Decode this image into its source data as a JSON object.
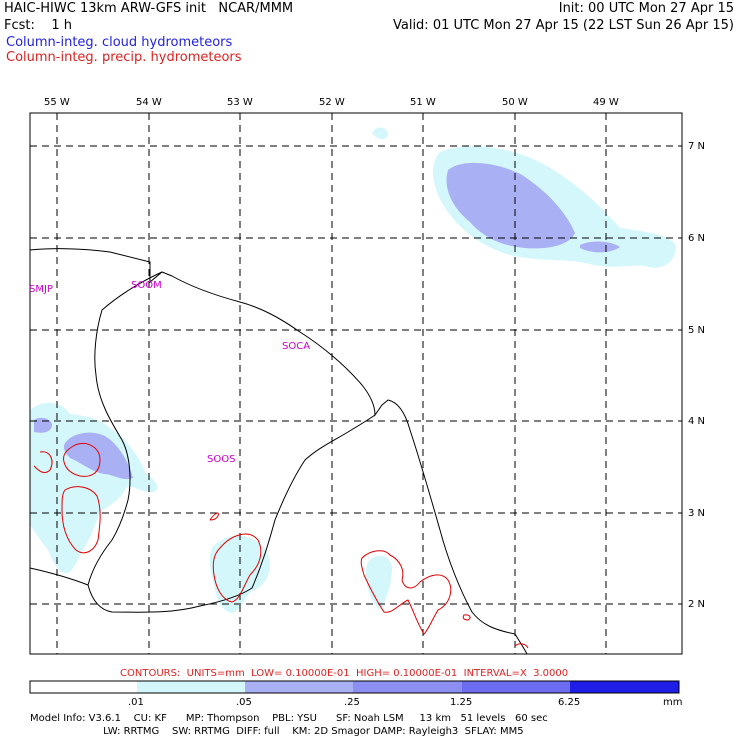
{
  "header": {
    "line1_left": "HAIC-HIWC 13km ARW-GFS init   NCAR/MMM",
    "line1_right": "Init: 00 UTC Mon 27 Apr 15",
    "line2_left": "Fcst:    1 h",
    "line2_right": "Valid: 01 UTC Mon 27 Apr 15 (22 LST Sun 26 Apr 15)",
    "legend_cloud": "Column-integ. cloud hydrometeors",
    "legend_precip": "Column-integ. precip. hydrometeors"
  },
  "colors": {
    "cloud_label": "#2222dd",
    "precip_label": "#dd2222",
    "precip_contour": "#e00000",
    "station": "#cc00cc",
    "shade_1": "#d4f7fb",
    "shade_2": "#aab0f4",
    "shade_3": "#6c6cf0",
    "shade_4": "#1e1ee6"
  },
  "lon_labels": [
    "55 W",
    "54 W",
    "53 W",
    "52 W",
    "51 W",
    "50 W",
    "49 W"
  ],
  "lat_labels": [
    "7 N",
    "6 N",
    "5 N",
    "4 N",
    "3 N",
    "2 N"
  ],
  "stations": [
    "SMJP",
    "SOOM",
    "SOCA",
    "SOOS"
  ],
  "contours_note": "CONTOURS:  UNITS=mm  LOW= 0.10000E-01  HIGH= 0.10000E-01  INTERVAL=X  3.0000",
  "colorbar": {
    "tick_labels": [
      ".01",
      ".05",
      ".25",
      "1.25",
      "6.25"
    ],
    "units": "mm"
  },
  "model_info": {
    "line1": "Model Info: V3.6.1    CU: KF      MP: Thompson    PBL: YSU      SF: Noah LSM     13 km   51 levels   60 sec",
    "line2": "                       LW: RRTMG    SW: RRTMG  DIFF: full    KM: 2D Smagor DAMP: Rayleigh3  SFLAY: MM5"
  }
}
